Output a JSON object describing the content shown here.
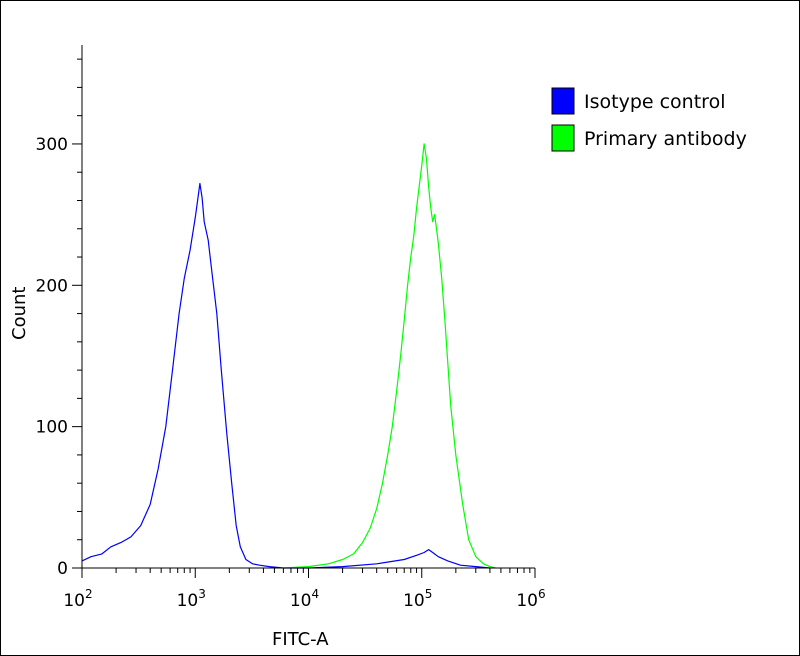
{
  "chart_data": {
    "type": "line",
    "title": "",
    "xlabel": "FITC-A",
    "ylabel": "Count",
    "x_scale": "log",
    "xlim": [
      100,
      1000000
    ],
    "ylim": [
      0,
      370
    ],
    "grid": false,
    "legend_position": "top-right",
    "x_ticks": [
      {
        "value": 100,
        "base": "10",
        "exp": "2"
      },
      {
        "value": 1000,
        "base": "10",
        "exp": "3"
      },
      {
        "value": 10000,
        "base": "10",
        "exp": "4"
      },
      {
        "value": 100000,
        "base": "10",
        "exp": "5"
      },
      {
        "value": 1000000,
        "base": "10",
        "exp": "6"
      }
    ],
    "y_ticks": [
      0,
      100,
      200,
      300
    ],
    "series": [
      {
        "name": "Isotype control",
        "color": "#0000ff",
        "x": [
          100,
          120,
          150,
          180,
          220,
          270,
          330,
          400,
          470,
          550,
          630,
          720,
          800,
          900,
          1000,
          1050,
          1100,
          1150,
          1200,
          1300,
          1400,
          1550,
          1700,
          1900,
          2100,
          2300,
          2500,
          2800,
          3200,
          3700,
          4500,
          6000,
          10000,
          20000,
          40000,
          70000,
          90000,
          105000,
          115000,
          125000,
          140000,
          170000,
          220000,
          300000,
          400000
        ],
        "y": [
          5,
          8,
          10,
          15,
          18,
          22,
          30,
          45,
          70,
          100,
          140,
          180,
          205,
          225,
          248,
          260,
          272,
          262,
          245,
          232,
          210,
          180,
          140,
          95,
          60,
          30,
          15,
          6,
          3,
          2,
          1,
          0,
          0,
          1,
          3,
          6,
          9,
          11,
          13,
          11,
          8,
          5,
          2,
          1,
          0
        ]
      },
      {
        "name": "Primary antibody",
        "color": "#00ff00",
        "x": [
          6000,
          10000,
          15000,
          20000,
          25000,
          30000,
          35000,
          40000,
          45000,
          50000,
          55000,
          60000,
          65000,
          70000,
          75000,
          80000,
          85000,
          90000,
          95000,
          100000,
          105000,
          110000,
          115000,
          120000,
          125000,
          130000,
          135000,
          140000,
          150000,
          160000,
          170000,
          180000,
          200000,
          230000,
          260000,
          300000,
          350000,
          400000,
          450000
        ],
        "y": [
          0,
          1,
          3,
          6,
          10,
          18,
          28,
          42,
          60,
          80,
          100,
          125,
          150,
          175,
          200,
          220,
          235,
          255,
          270,
          285,
          300,
          290,
          270,
          255,
          245,
          250,
          240,
          230,
          205,
          175,
          145,
          115,
          80,
          45,
          20,
          8,
          3,
          1,
          0
        ]
      }
    ]
  }
}
